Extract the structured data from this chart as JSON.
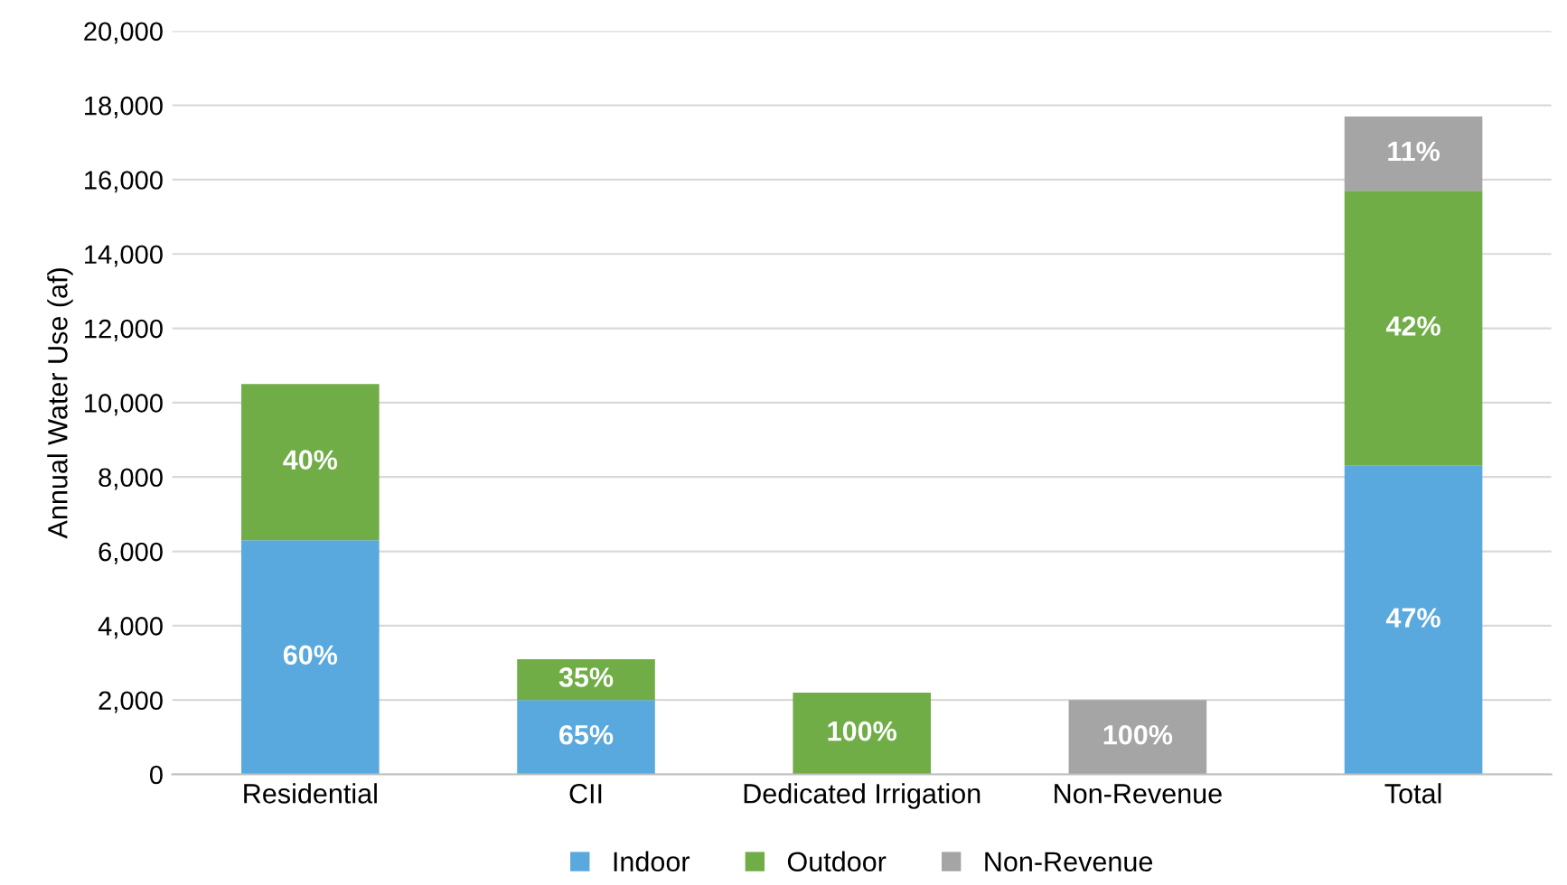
{
  "chart_data": {
    "type": "bar",
    "stacked": true,
    "ylabel": "Annual Water Use (af)",
    "categories": [
      "Residential",
      "CII",
      "Dedicated Irrigation",
      "Non-Revenue",
      "Total"
    ],
    "series": [
      {
        "name": "Indoor",
        "color": "#5aa9de",
        "values": [
          6300,
          2000,
          null,
          null,
          8300
        ]
      },
      {
        "name": "Outdoor",
        "color": "#70ad47",
        "values": [
          4200,
          1100,
          2200,
          null,
          7400
        ]
      },
      {
        "name": "Non-Revenue",
        "color": "#a5a5a5",
        "values": [
          null,
          null,
          null,
          2000,
          2000
        ]
      }
    ],
    "annotations": [
      "60%",
      "65%",
      "47%",
      "40%",
      "35%",
      "100%",
      "42%",
      "100%",
      "11%"
    ],
    "ylim": [
      0,
      20000
    ],
    "yticks": [
      0,
      {
        "value": 2000,
        "label": "2,000"
      },
      {
        "value": 4000,
        "label": "4,000"
      },
      {
        "value": 6000,
        "label": "6,000"
      },
      {
        "value": 8000,
        "label": "8,000"
      },
      {
        "value": 10000,
        "label": "10,000"
      },
      {
        "value": 12000,
        "label": "12,000"
      },
      {
        "value": 14000,
        "label": "14,000"
      },
      {
        "value": 16000,
        "label": "16,000"
      },
      {
        "value": 18000,
        "label": "18,000"
      },
      {
        "value": 20000,
        "label": "20,000"
      }
    ],
    "grid": "y",
    "legend": "bottom"
  }
}
